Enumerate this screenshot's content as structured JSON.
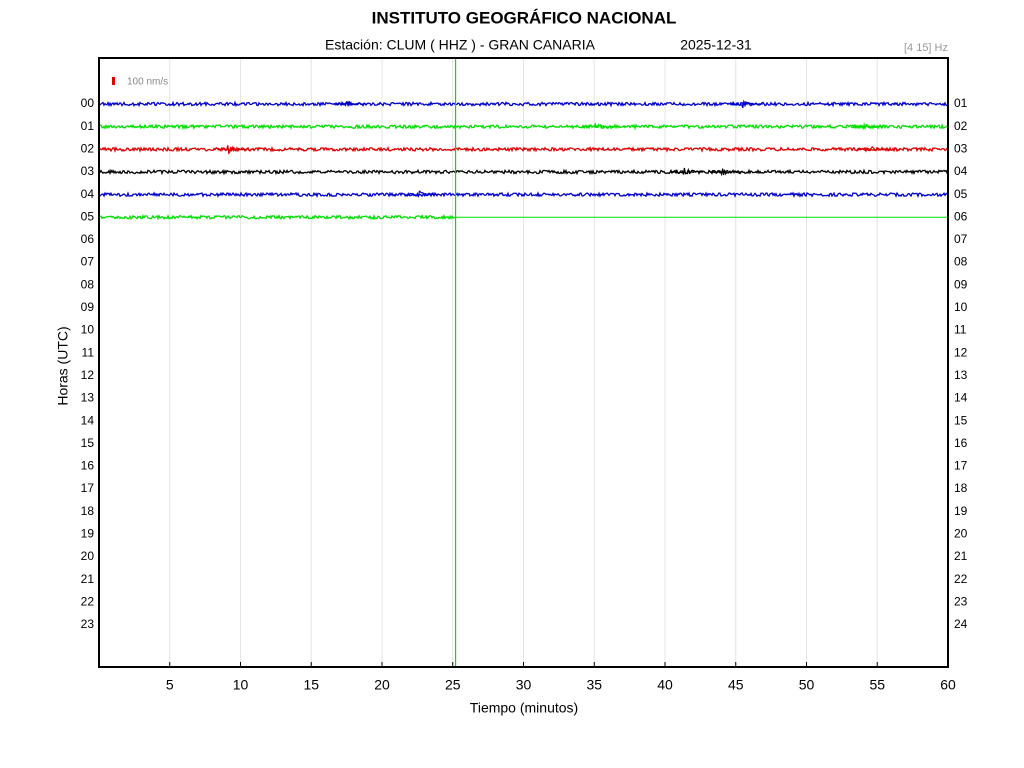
{
  "chart_data": {
    "type": "helicorder",
    "title": "INSTITUTO GEOGRÁFICO NACIONAL",
    "station": "Estación:  CLUM ( HHZ ) - GRAN CANARIA",
    "date": "2025-12-31",
    "filter": "[4 15] Hz",
    "scale_label": "100 nm/s",
    "ylabel": "Horas (UTC)",
    "xlabel": "Tiempo (minutos)",
    "xlim": [
      0,
      60
    ],
    "xticks": [
      5,
      10,
      15,
      20,
      25,
      30,
      35,
      40,
      45,
      50,
      55,
      60
    ],
    "grid": true,
    "hours_left": [
      "00",
      "01",
      "02",
      "03",
      "04",
      "05",
      "06",
      "07",
      "08",
      "09",
      "10",
      "11",
      "12",
      "13",
      "14",
      "15",
      "16",
      "17",
      "18",
      "19",
      "20",
      "21",
      "22",
      "23"
    ],
    "hours_right": [
      "01",
      "02",
      "03",
      "04",
      "05",
      "06",
      "07",
      "08",
      "09",
      "10",
      "11",
      "12",
      "13",
      "14",
      "15",
      "16",
      "17",
      "18",
      "19",
      "20",
      "21",
      "22",
      "23",
      "24"
    ],
    "traces": [
      {
        "color": "#0000cc",
        "end": 60
      },
      {
        "color": "#00e000",
        "end": 60
      },
      {
        "color": "#dd0000",
        "end": 60
      },
      {
        "color": "#000000",
        "end": 60
      },
      {
        "color": "#0000cc",
        "end": 60
      },
      {
        "color": "#00e000",
        "end": 25.2
      }
    ],
    "current_minute": 25.2,
    "events": [
      {
        "trace": 0,
        "minute": 17.5
      },
      {
        "trace": 0,
        "minute": 45.5
      },
      {
        "trace": 1,
        "minute": 35
      },
      {
        "trace": 1,
        "minute": 54
      },
      {
        "trace": 2,
        "minute": 9.1
      },
      {
        "trace": 2,
        "minute": 54.5
      },
      {
        "trace": 3,
        "minute": 41.3
      },
      {
        "trace": 3,
        "minute": 44
      },
      {
        "trace": 4,
        "minute": 22.5
      }
    ]
  }
}
